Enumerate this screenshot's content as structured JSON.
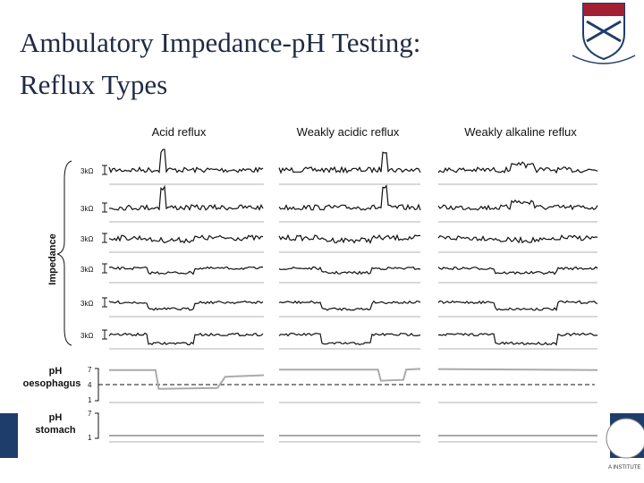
{
  "title": [
    "Ambulatory Impedance-pH Testing:",
    "Reflux Types"
  ],
  "columns": [
    "Acid reflux",
    "Weakly acidic reflux",
    "Weakly alkaline reflux"
  ],
  "impedance": {
    "label": "Impedance",
    "channels": [
      "3kΩ",
      "3kΩ",
      "3kΩ",
      "3kΩ",
      "3kΩ",
      "3kΩ"
    ]
  },
  "ph_oesophagus": {
    "label": [
      "pH",
      "oesophagus"
    ],
    "ticks": [
      "7",
      "4",
      "1"
    ]
  },
  "ph_stomach": {
    "label": [
      "pH",
      "stomach"
    ],
    "ticks": [
      "7",
      "1"
    ]
  },
  "footer": "A INSTITUTE"
}
